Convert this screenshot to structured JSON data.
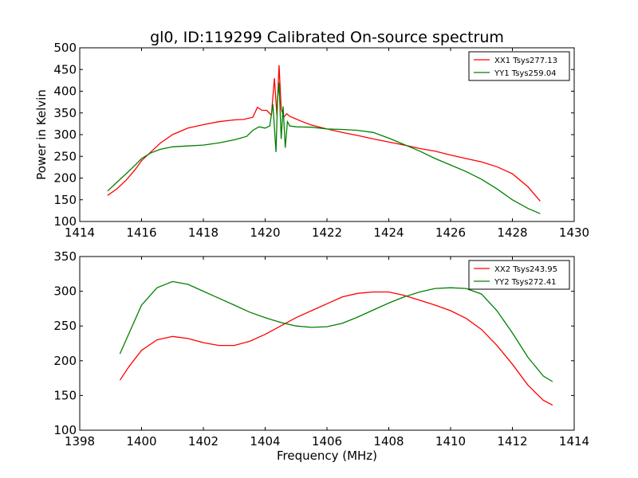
{
  "chart_data": [
    {
      "type": "line",
      "title": "gl0, ID:119299 Calibrated On-source spectrum",
      "xlabel": "",
      "ylabel": "Power in Kelvin",
      "xlim": [
        1414,
        1430
      ],
      "ylim": [
        100,
        500
      ],
      "xticks": [
        1414,
        1416,
        1418,
        1420,
        1422,
        1424,
        1426,
        1428,
        1430
      ],
      "yticks": [
        100,
        150,
        200,
        250,
        300,
        350,
        400,
        450,
        500
      ],
      "grid": false,
      "legend": "top-right",
      "series": [
        {
          "name": "XX1 Tsys277.13",
          "color": "#ff0000",
          "x": [
            1414.9,
            1415.2,
            1415.5,
            1415.8,
            1416.0,
            1416.3,
            1416.6,
            1417.0,
            1417.5,
            1418.0,
            1418.5,
            1419.0,
            1419.3,
            1419.6,
            1419.75,
            1419.9,
            1420.05,
            1420.2,
            1420.3,
            1420.38,
            1420.45,
            1420.52,
            1420.6,
            1420.7,
            1420.8,
            1421.0,
            1421.2,
            1421.5,
            1422.0,
            1422.5,
            1423.0,
            1423.5,
            1424.0,
            1424.5,
            1425.0,
            1425.5,
            1426.0,
            1426.5,
            1427.0,
            1427.5,
            1428.0,
            1428.5,
            1428.9
          ],
          "y": [
            160,
            175,
            195,
            220,
            240,
            260,
            280,
            300,
            315,
            323,
            330,
            334,
            335,
            340,
            363,
            356,
            356,
            345,
            430,
            345,
            460,
            360,
            340,
            348,
            342,
            336,
            330,
            322,
            313,
            305,
            298,
            290,
            283,
            276,
            268,
            262,
            253,
            245,
            237,
            226,
            210,
            180,
            147
          ]
        },
        {
          "name": "YY1 Tsys259.04",
          "color": "#008000",
          "x": [
            1414.9,
            1415.2,
            1415.5,
            1415.8,
            1416.0,
            1416.3,
            1416.6,
            1417.0,
            1417.5,
            1418.0,
            1418.5,
            1419.0,
            1419.4,
            1419.6,
            1419.8,
            1420.0,
            1420.15,
            1420.25,
            1420.35,
            1420.4,
            1420.45,
            1420.52,
            1420.58,
            1420.65,
            1420.72,
            1420.8,
            1421.0,
            1421.5,
            1422.0,
            1422.5,
            1423.0,
            1423.5,
            1424.0,
            1424.5,
            1425.0,
            1425.5,
            1426.0,
            1426.5,
            1427.0,
            1427.5,
            1428.0,
            1428.5,
            1428.9
          ],
          "y": [
            170,
            190,
            210,
            230,
            245,
            258,
            266,
            272,
            274,
            276,
            281,
            288,
            296,
            310,
            318,
            315,
            320,
            370,
            260,
            380,
            420,
            290,
            365,
            270,
            330,
            320,
            318,
            317,
            313,
            312,
            310,
            305,
            292,
            277,
            262,
            245,
            230,
            215,
            197,
            175,
            150,
            130,
            118
          ]
        }
      ]
    },
    {
      "type": "line",
      "title": "",
      "xlabel": "Frequency (MHz)",
      "ylabel": "",
      "xlim": [
        1398,
        1414
      ],
      "ylim": [
        100,
        350
      ],
      "xticks": [
        1398,
        1400,
        1402,
        1404,
        1406,
        1408,
        1410,
        1412,
        1414
      ],
      "yticks": [
        100,
        150,
        200,
        250,
        300,
        350
      ],
      "grid": false,
      "legend": "top-right",
      "series": [
        {
          "name": "XX2 Tsys243.95",
          "color": "#ff0000",
          "x": [
            1399.3,
            1399.6,
            1400.0,
            1400.5,
            1401.0,
            1401.5,
            1402.0,
            1402.5,
            1403.0,
            1403.5,
            1404.0,
            1404.5,
            1405.0,
            1405.5,
            1406.0,
            1406.5,
            1407.0,
            1407.5,
            1408.0,
            1408.5,
            1409.0,
            1409.5,
            1410.0,
            1410.5,
            1411.0,
            1411.5,
            1412.0,
            1412.5,
            1413.0,
            1413.3
          ],
          "y": [
            172,
            192,
            215,
            230,
            235,
            232,
            226,
            222,
            222,
            228,
            238,
            250,
            262,
            272,
            282,
            292,
            297,
            299,
            299,
            294,
            287,
            280,
            272,
            261,
            245,
            222,
            195,
            165,
            143,
            136
          ]
        },
        {
          "name": "YY2 Tsys272.41",
          "color": "#008000",
          "x": [
            1399.3,
            1399.6,
            1400.0,
            1400.5,
            1401.0,
            1401.5,
            1402.0,
            1402.5,
            1403.0,
            1403.5,
            1404.0,
            1404.5,
            1405.0,
            1405.5,
            1406.0,
            1406.5,
            1407.0,
            1407.5,
            1408.0,
            1408.5,
            1409.0,
            1409.5,
            1410.0,
            1410.5,
            1411.0,
            1411.5,
            1412.0,
            1412.5,
            1413.0,
            1413.3
          ],
          "y": [
            210,
            240,
            280,
            305,
            314,
            310,
            300,
            290,
            280,
            270,
            262,
            255,
            250,
            248,
            249,
            254,
            263,
            273,
            283,
            292,
            299,
            304,
            305,
            304,
            296,
            272,
            240,
            205,
            178,
            170
          ]
        }
      ]
    }
  ]
}
